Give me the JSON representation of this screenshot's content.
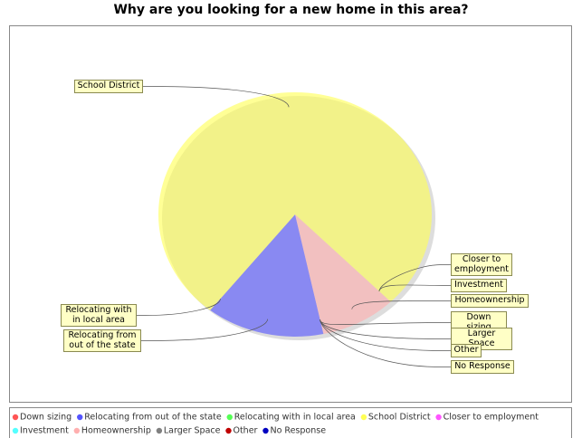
{
  "chart_data": {
    "type": "pie",
    "title": "Why are you looking for a new home in this area?",
    "categories": [
      "Down sizing",
      "Relocating from out of the state",
      "Relocating with in local area",
      "School District",
      "Closer to employment",
      "Investment",
      "Homeownership",
      "Larger Space",
      "Other",
      "No Response"
    ],
    "values": [
      0,
      14,
      0,
      77,
      0,
      0,
      9,
      0,
      0,
      0
    ],
    "colors": [
      "#ff5555",
      "#5555ff",
      "#55ff55",
      "#ffff55",
      "#ff55ff",
      "#55ffff",
      "#ffafaf",
      "#808080",
      "#c00000",
      "#0000c0"
    ],
    "legend": "bottom"
  }
}
